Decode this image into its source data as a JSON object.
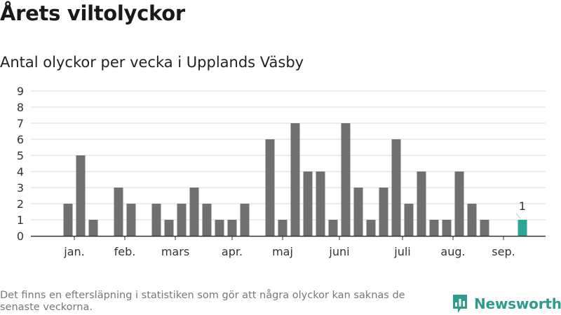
{
  "header": {
    "title": "Årets viltolyckor",
    "subtitle": "Antal olyckor per vecka i Upplands Väsby"
  },
  "footer": {
    "note": "Det finns en eftersläpning i statistiken som gör att några olyckor kan saknas de senaste veckorna.",
    "brand": "Newsworthy",
    "brand_icon": "bar-chart-logo-icon"
  },
  "colors": {
    "bar": "#707072",
    "highlight": "#2ba59a",
    "grid": "#d9d9d9",
    "axis": "#333333",
    "brand": "#2e9b8f"
  },
  "chart_data": {
    "type": "bar",
    "title": "Antal olyckor per vecka i Upplands Väsby",
    "xlabel": "",
    "ylabel": "",
    "ylim": [
      0,
      9
    ],
    "yticks": [
      0,
      1,
      2,
      3,
      4,
      5,
      6,
      7,
      8,
      9
    ],
    "grid": true,
    "weeks": [
      1,
      2,
      3,
      4,
      5,
      6,
      7,
      8,
      9,
      10,
      11,
      12,
      13,
      14,
      15,
      16,
      17,
      18,
      19,
      20,
      21,
      22,
      23,
      24,
      25,
      26,
      27,
      28,
      29,
      30,
      31,
      32,
      33,
      34,
      35,
      36,
      37,
      38,
      39,
      40,
      41
    ],
    "values": [
      0,
      2,
      5,
      1,
      0,
      3,
      2,
      0,
      2,
      1,
      2,
      3,
      2,
      1,
      1,
      2,
      0,
      6,
      1,
      7,
      4,
      4,
      1,
      7,
      3,
      1,
      3,
      6,
      2,
      4,
      1,
      1,
      4,
      2,
      1,
      0,
      0,
      1,
      0,
      0,
      0
    ],
    "highlight_week": 38,
    "highlight_label": "1",
    "month_labels": [
      {
        "label": "jan.",
        "week": 2.5
      },
      {
        "label": "feb.",
        "week": 6.5
      },
      {
        "label": "mars",
        "week": 10.5
      },
      {
        "label": "apr.",
        "week": 15
      },
      {
        "label": "maj",
        "week": 19
      },
      {
        "label": "juni",
        "week": 23.5
      },
      {
        "label": "juli",
        "week": 28.5
      },
      {
        "label": "aug.",
        "week": 32.5
      },
      {
        "label": "sep.",
        "week": 36.5
      }
    ]
  }
}
